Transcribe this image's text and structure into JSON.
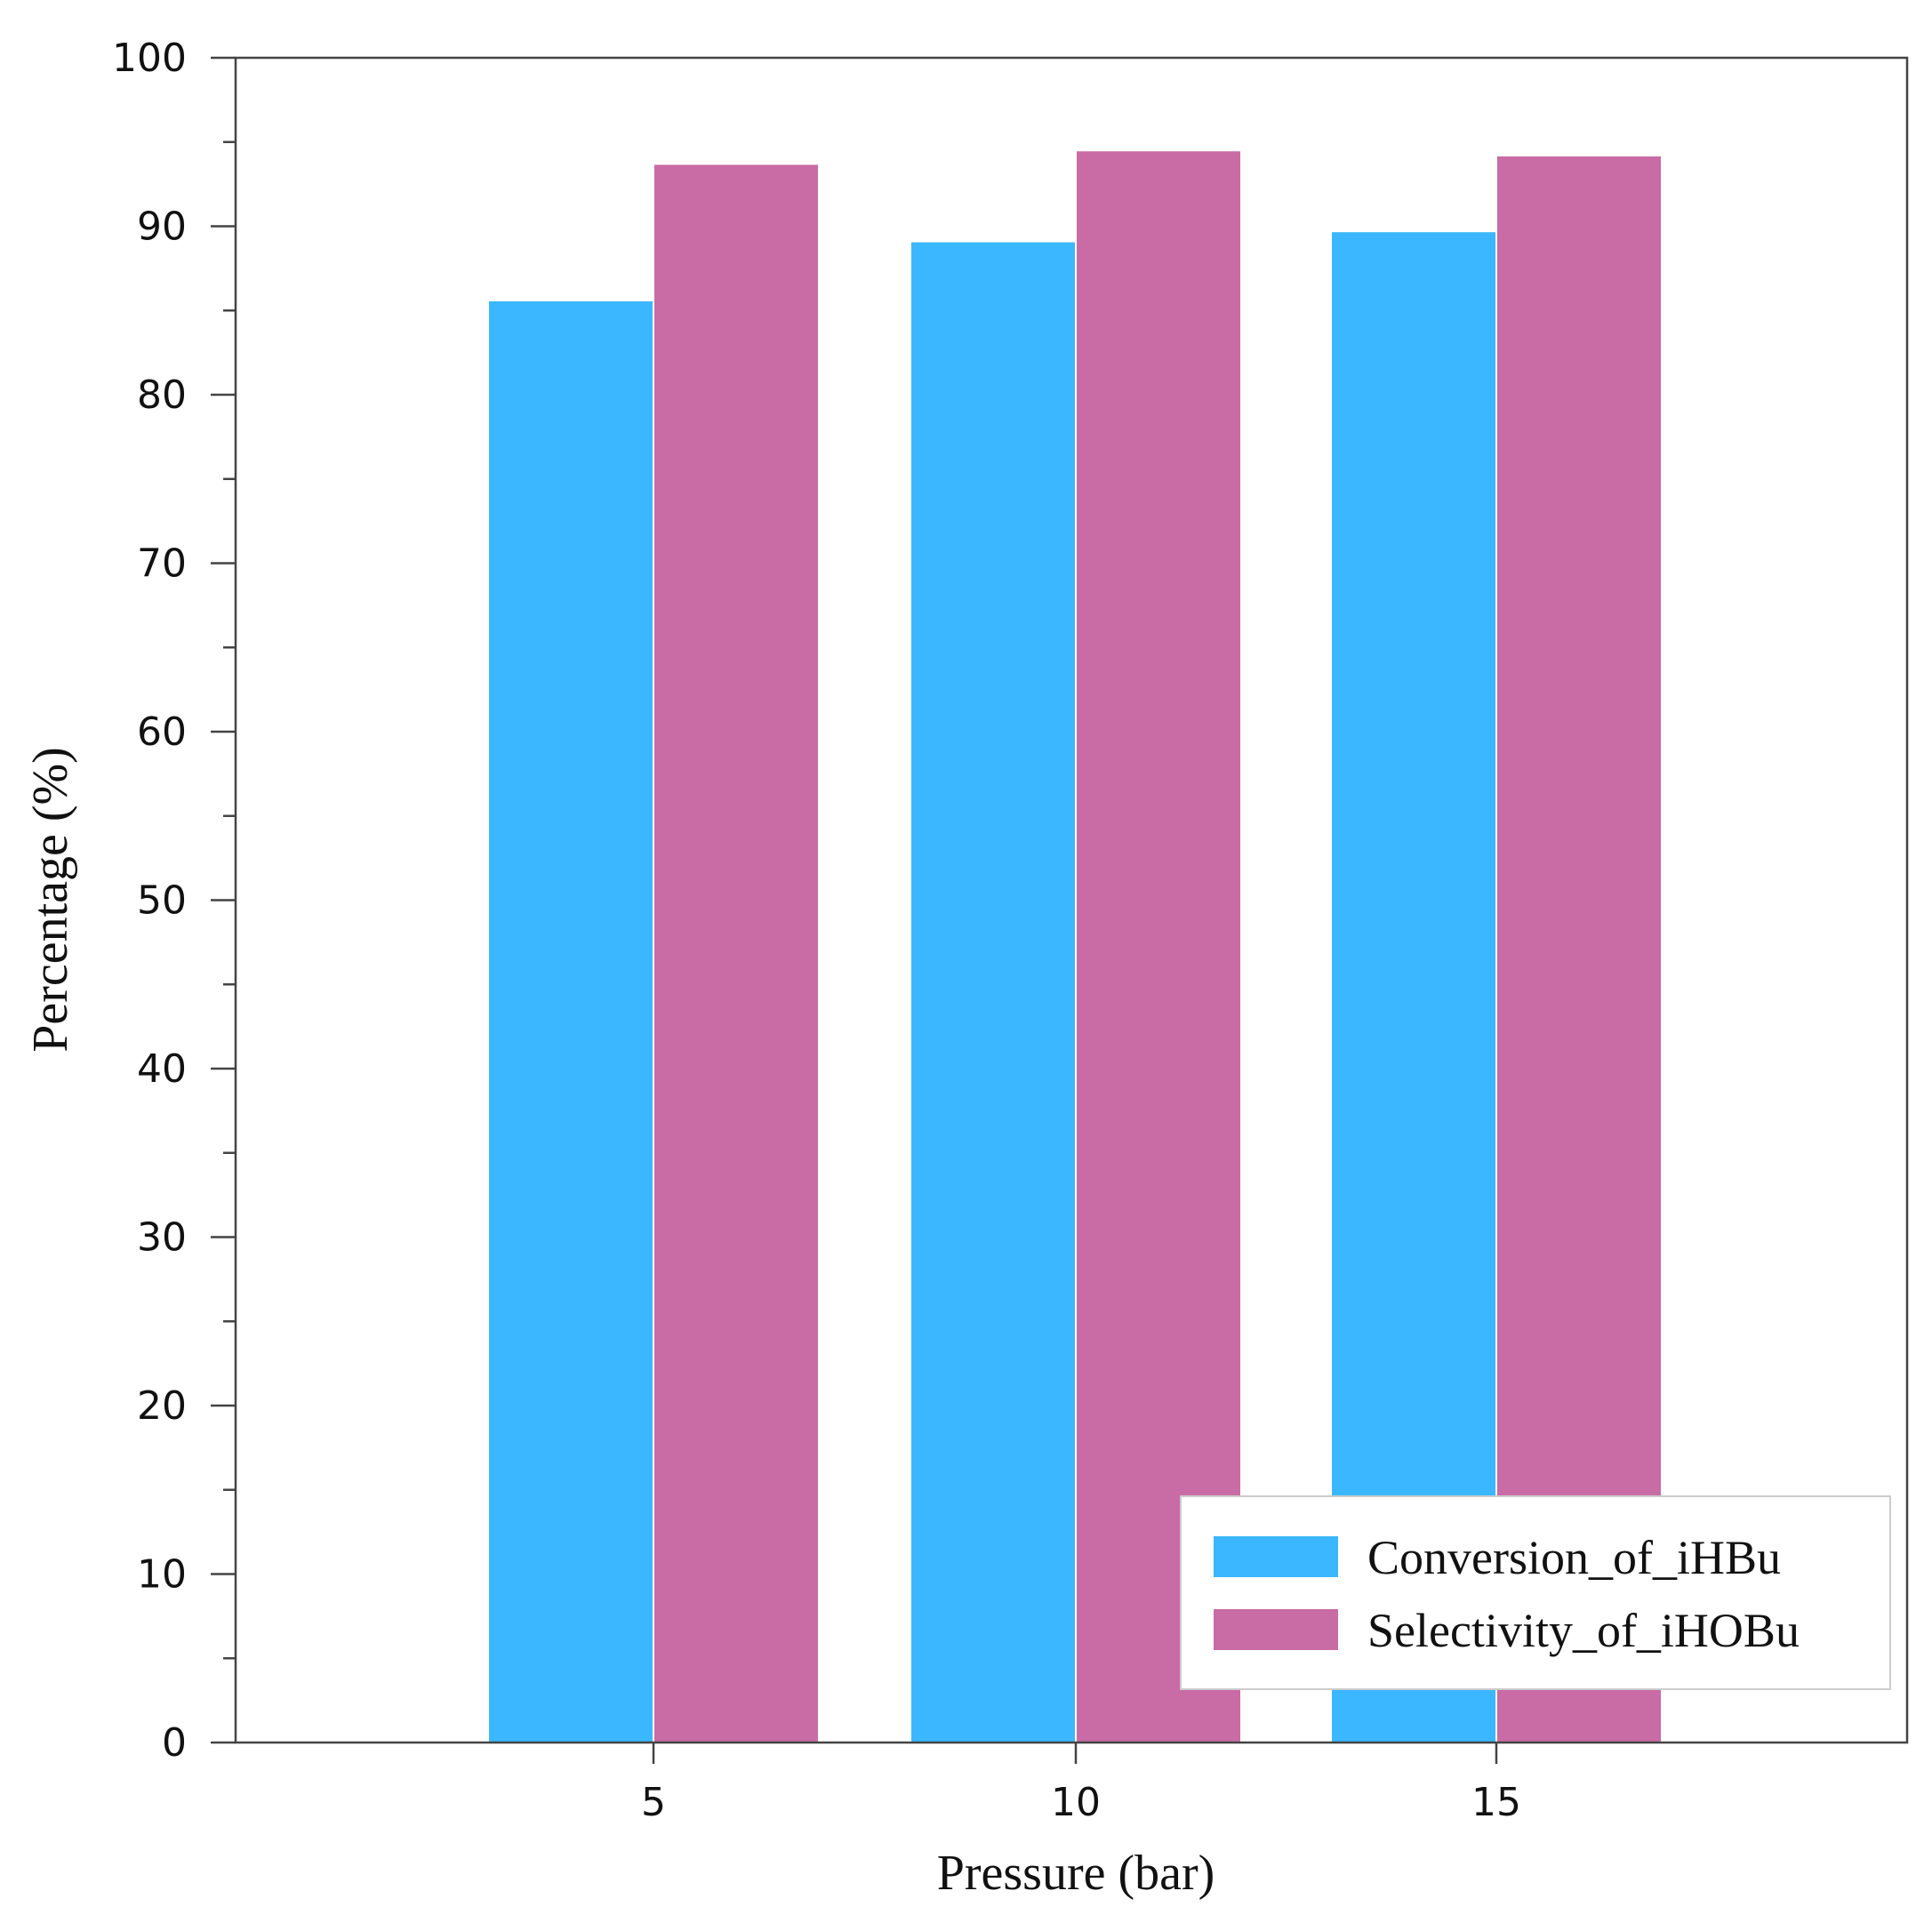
{
  "chart_data": {
    "type": "bar",
    "title": "",
    "xlabel": "Pressure (bar)",
    "ylabel": "Percentage (%)",
    "categories": [
      "5",
      "10",
      "15"
    ],
    "series": [
      {
        "name": "Conversion_of_iHBu",
        "color": "#3bb7ff",
        "values": [
          85.6,
          89.1,
          89.7
        ]
      },
      {
        "name": "Selectivity_of_iHOBu",
        "color": "#c96ba4",
        "values": [
          93.7,
          94.5,
          94.2
        ]
      }
    ],
    "ylim": [
      0,
      100
    ],
    "yticks": [
      "0",
      "10",
      "20",
      "30",
      "40",
      "50",
      "60",
      "70",
      "80",
      "90",
      "100"
    ],
    "legend_position": "bottom-right",
    "grid": false
  }
}
